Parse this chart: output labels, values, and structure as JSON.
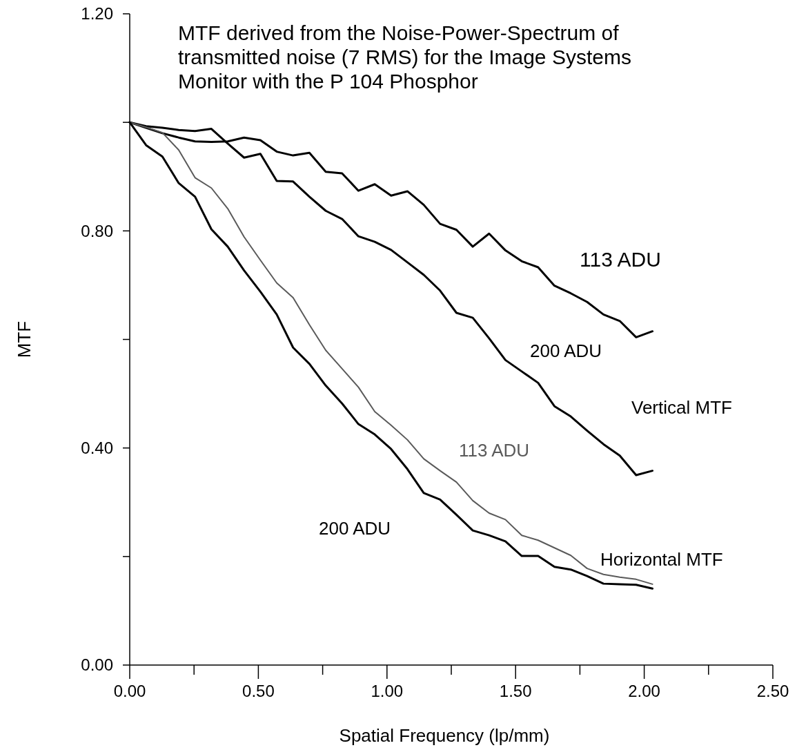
{
  "chart_data": {
    "type": "line",
    "title": "MTF derived from the Noise-Power-Spectrum of transmitted noise (7 RMS) for the Image Systems Monitor with the P 104 Phosphor",
    "xlabel": "Spatial Frequency (lp/mm)",
    "ylabel": "MTF",
    "x": [
      0,
      0.0635,
      0.127,
      0.1905,
      0.254,
      0.3175,
      0.381,
      0.4445,
      0.508,
      0.5715,
      0.635,
      0.6985,
      0.762,
      0.8255,
      0.889,
      0.9525,
      1.016,
      1.0795,
      1.143,
      1.2065,
      1.27,
      1.3335,
      1.397,
      1.4605,
      1.524,
      1.5875,
      1.651,
      1.7145,
      1.778,
      1.8415,
      1.905,
      1.9685,
      2.032
    ],
    "series": [
      {
        "name": "113 ADU",
        "color": "#000000",
        "values": [
          1.0,
          0.99,
          0.98,
          0.972,
          0.965,
          0.964,
          0.965,
          0.972,
          0.967,
          0.946,
          0.939,
          0.944,
          0.909,
          0.906,
          0.874,
          0.886,
          0.865,
          0.873,
          0.848,
          0.813,
          0.802,
          0.771,
          0.795,
          0.764,
          0.744,
          0.733,
          0.699,
          0.685,
          0.669,
          0.646,
          0.634,
          0.604,
          0.615
        ]
      },
      {
        "name": "200 ADU",
        "color": "#000000",
        "values": [
          1.0,
          0.993,
          0.99,
          0.986,
          0.984,
          0.988,
          0.961,
          0.935,
          0.942,
          0.892,
          0.891,
          0.863,
          0.837,
          0.822,
          0.79,
          0.78,
          0.765,
          0.742,
          0.719,
          0.69,
          0.649,
          0.64,
          0.602,
          0.562,
          0.541,
          0.52,
          0.477,
          0.458,
          0.432,
          0.407,
          0.386,
          0.35,
          0.358
        ]
      },
      {
        "name": "113 ADU",
        "color": "#5a5a5a",
        "values": [
          1.0,
          0.991,
          0.981,
          0.949,
          0.898,
          0.879,
          0.841,
          0.789,
          0.746,
          0.704,
          0.677,
          0.627,
          0.58,
          0.546,
          0.512,
          0.467,
          0.442,
          0.415,
          0.38,
          0.358,
          0.337,
          0.303,
          0.28,
          0.268,
          0.239,
          0.23,
          0.216,
          0.202,
          0.178,
          0.167,
          0.162,
          0.158,
          0.149
        ]
      },
      {
        "name": "200 ADU",
        "color": "#000000",
        "values": [
          1.0,
          0.958,
          0.937,
          0.888,
          0.863,
          0.803,
          0.771,
          0.727,
          0.688,
          0.646,
          0.585,
          0.555,
          0.515,
          0.482,
          0.444,
          0.425,
          0.398,
          0.361,
          0.317,
          0.305,
          0.277,
          0.248,
          0.239,
          0.228,
          0.201,
          0.201,
          0.181,
          0.176,
          0.164,
          0.15,
          0.149,
          0.148,
          0.141
        ]
      }
    ],
    "annotations": [
      "Vertical MTF",
      "Horizontal MTF"
    ],
    "xlim": [
      0,
      2.5
    ],
    "xticks": [
      {
        "value": 0,
        "label": "0.00"
      },
      {
        "value": 0.25,
        "label": null
      },
      {
        "value": 0.5,
        "label": "0.50"
      },
      {
        "value": 0.75,
        "label": null
      },
      {
        "value": 1,
        "label": "1.00"
      },
      {
        "value": 1.25,
        "label": null
      },
      {
        "value": 1.5,
        "label": "1.50"
      },
      {
        "value": 1.75,
        "label": null
      },
      {
        "value": 2,
        "label": "2.00"
      },
      {
        "value": 2.25,
        "label": null
      },
      {
        "value": 2.5,
        "label": "2.50"
      }
    ],
    "ylim": [
      0,
      1.2
    ],
    "yticks": [
      {
        "value": 0,
        "label": "0.00"
      },
      {
        "value": 0.2,
        "label": null
      },
      {
        "value": 0.4,
        "label": "0.40"
      },
      {
        "value": 0.6,
        "label": null
      },
      {
        "value": 0.8,
        "label": "0.80"
      },
      {
        "value": 1,
        "label": null
      },
      {
        "value": 1.2,
        "label": "1.20"
      }
    ],
    "grid": false,
    "marker": "none",
    "line_style": "solid"
  }
}
